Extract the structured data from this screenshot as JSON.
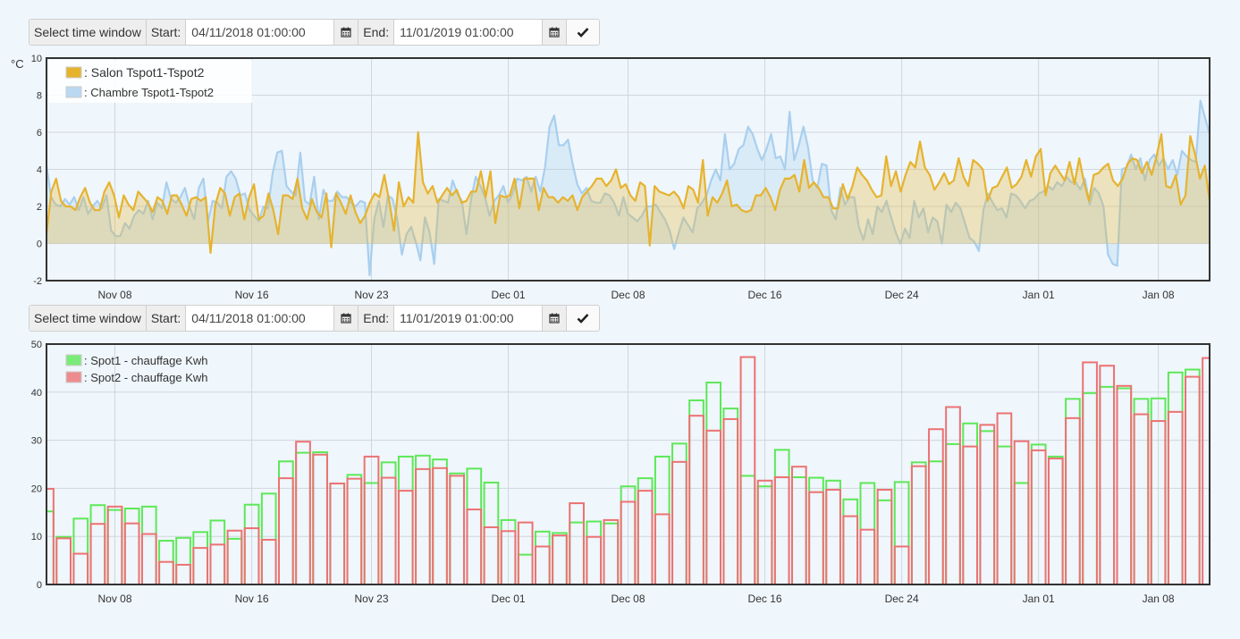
{
  "toolbars": [
    {
      "select_label": "Select time window",
      "start_label": "Start:",
      "start_value": "04/11/2018 01:00:00",
      "end_label": "End:",
      "end_value": "11/01/2019 01:00:00"
    },
    {
      "select_label": "Select time window",
      "start_label": "Start:",
      "start_value": "04/11/2018 01:00:00",
      "end_label": "End:",
      "end_value": "11/01/2019 01:00:00"
    }
  ],
  "chart_data": [
    {
      "type": "area",
      "ylabel": "°C",
      "ylim": [
        -2,
        10
      ],
      "yticks": [
        "10",
        "8",
        "6",
        "4",
        "2",
        "0",
        "-2"
      ],
      "xlim": [
        "2018-11-04",
        "2019-01-11"
      ],
      "xticks": [
        "Nov 08",
        "Nov 16",
        "Nov 23",
        "Dec 01",
        "Dec 08",
        "Dec 16",
        "Dec 24",
        "Jan 01",
        "Jan 08"
      ],
      "grid": true,
      "legend_position": "top-left",
      "colors": {
        "salon": "#e6b32e",
        "chambre": "#a9cfee"
      },
      "series": [
        {
          "name": ": Salon Tspot1-Tspot2",
          "values": [
            0.5,
            2.8,
            3.5,
            2.3,
            2,
            2,
            1.8,
            2.5,
            3,
            2.2,
            1.8,
            1.8,
            2.8,
            3.3,
            2.6,
            1.4,
            2.6,
            2.1,
            1.8,
            2.8,
            2.5,
            2.2,
            1.7,
            2.5,
            2.3,
            1.6,
            2.6,
            2.6,
            2.1,
            1.5,
            2.4,
            2.5,
            2.3,
            2.5,
            -0.5,
            2.1,
            3,
            2.7,
            1.5,
            2.5,
            2.7,
            1.3,
            2.5,
            3.2,
            1.3,
            1.5,
            2.7,
            1.8,
            0.5,
            2.6,
            2.6,
            2.4,
            3.5,
            1.9,
            1.3,
            2.4,
            1.7,
            1.4,
            2.7,
            -0.2,
            2.7,
            2.2,
            1.6,
            2.6,
            1.7,
            1.1,
            1.5,
            2.2,
            2.7,
            2.5,
            3.7,
            2.3,
            0.7,
            3.3,
            2,
            2.5,
            2.2,
            6,
            3.3,
            2.7,
            3.1,
            2.2,
            2.6,
            3,
            2.6,
            2.9,
            2.2,
            2.3,
            2.8,
            2.8,
            3.9,
            2.5,
            3.9,
            1.1,
            2.6,
            2.5,
            2.6,
            3.5,
            1.9,
            3.5,
            3.5,
            3.5,
            1.8,
            3,
            2.5,
            2.5,
            2.2,
            2.5,
            2.3,
            2.6,
            1.8,
            2.5,
            2.8,
            3.1,
            3.5,
            3.5,
            3.1,
            3.4,
            4,
            3,
            3.2,
            2.6,
            2.3,
            3.3,
            3.1,
            -0.1,
            3.1,
            2.8,
            2.7,
            2.6,
            2.8,
            2.5,
            1.9,
            3.1,
            2.9,
            2.2,
            4.5,
            1.5,
            2.5,
            2.2,
            2.7,
            3.4,
            2,
            2.1,
            1.8,
            1.7,
            1.8,
            2.6,
            2.6,
            3,
            2.5,
            1.8,
            2.9,
            3.5,
            3.5,
            3.7,
            2.8,
            4.5,
            3,
            3.3,
            3,
            2.5,
            2.5,
            1.9,
            1.9,
            3.2,
            2.4,
            3.1,
            4.1,
            3.7,
            3.4,
            2.9,
            2.5,
            2.6,
            4.7,
            3.1,
            3.9,
            2.8,
            3.7,
            4.4,
            4.1,
            5.5,
            4.1,
            3.7,
            2.9,
            3.3,
            3.8,
            3.2,
            3.4,
            4.6,
            3.6,
            3.1,
            4.5,
            4.3,
            4,
            2.3,
            3,
            3.1,
            3.6,
            4.1,
            3,
            3.2,
            3.6,
            4.5,
            3.6,
            4.7,
            5.1,
            2.6,
            3.8,
            4.2,
            3.8,
            3.4,
            4.4,
            3.2,
            4.6,
            3.3,
            2.3,
            3.7,
            3.8,
            4.1,
            4.3,
            3.4,
            3.1,
            3.5,
            4.3,
            4.6,
            4.5,
            3.8,
            4.4,
            3.7,
            4.7,
            5.9,
            3.1,
            3,
            3.7,
            2.1,
            2.6,
            5.8,
            4.8,
            3.5,
            4.2,
            2.3
          ]
        },
        {
          "name": ": Chambre Tspot1-Tspot2",
          "values": [
            4.2,
            2.5,
            2.1,
            2,
            2.4,
            2.1,
            2.5,
            1.8,
            2.5,
            1.6,
            2,
            2.3,
            1.9,
            2.6,
            0.7,
            0.4,
            0.4,
            1.1,
            0.8,
            1.5,
            1.8,
            1.6,
            2.3,
            1.3,
            2.2,
            1.9,
            3.3,
            2.4,
            2.2,
            2.5,
            3,
            2,
            1.3,
            3,
            3.5,
            1.2,
            2.3,
            2.2,
            1.9,
            3.6,
            3.9,
            3.5,
            2.6,
            2.7,
            1.8,
            1.5,
            1.2,
            2,
            1.9,
            3.8,
            4.9,
            5,
            3.1,
            2.8,
            2.6,
            4.9,
            2.3,
            2.1,
            3.6,
            1.3,
            2.9,
            2.3,
            2.3,
            2.8,
            2.5,
            2.5,
            2.2,
            2,
            2.3,
            2.2,
            -1.7,
            1.3,
            2.3,
            0.9,
            2.6,
            2.4,
            1.3,
            -0.6,
            0.5,
            0.9,
            0.1,
            -0.9,
            1.4,
            0.6,
            -1.1,
            2.4,
            2.3,
            2.2,
            3.4,
            2.7,
            2.3,
            0.5,
            2.4,
            3.6,
            3.1,
            2.5,
            1.5,
            2.3,
            2.6,
            3.1,
            2.2,
            2.7,
            3.5,
            3.4,
            3.6,
            2.8,
            3.6,
            2.8,
            4.1,
            6.3,
            6.9,
            5.3,
            5.3,
            5.6,
            4.3,
            3.2,
            2.7,
            3,
            2.3,
            2.2,
            2.2,
            2.7,
            2.6,
            2.2,
            1.5,
            2.5,
            1.6,
            1.4,
            1.2,
            1.5,
            2,
            2,
            2.1,
            1.7,
            1.3,
            0.7,
            -0.3,
            0.6,
            1.4,
            1,
            0.6,
            1.9,
            2.2,
            2.6,
            3.4,
            4,
            3.4,
            5.9,
            4,
            4.3,
            5.1,
            5.3,
            6.3,
            5.9,
            5.1,
            4.5,
            5.1,
            5.9,
            4.6,
            4.7,
            4,
            7.1,
            4.5,
            5.3,
            6.3,
            5.2,
            3.4,
            3,
            4.3,
            4.2,
            1.8,
            1.3,
            3,
            2.1,
            2.5,
            2.5,
            0.9,
            0.2,
            1.3,
            0.5,
            2,
            1.7,
            2.3,
            1.4,
            0.6,
            0,
            0.8,
            0.3,
            2.3,
            1.4,
            1.9,
            0.6,
            1.4,
            1.2,
            0,
            2.1,
            1.7,
            2.2,
            1.9,
            1.1,
            0.3,
            0.1,
            -0.4,
            1.8,
            2.7,
            2.2,
            1.8,
            1.9,
            1.4,
            2.7,
            2.6,
            2.3,
            1.9,
            2.3,
            2.4,
            2.7,
            2.8,
            3.1,
            2.9,
            3.3,
            3.1,
            3.6,
            3.3,
            3.3,
            2.9,
            3.5,
            2.1,
            3,
            2.7,
            2,
            -0.6,
            -1.1,
            -1.2,
            4,
            4.1,
            4.8,
            4,
            4.6,
            3.4,
            4.5,
            4.8,
            4.2,
            4.6,
            4,
            4.5,
            3.7,
            5,
            4.7,
            4.5,
            4.4,
            7.7,
            6.8,
            5.9
          ]
        }
      ]
    },
    {
      "type": "bar",
      "ylim": [
        0,
        50
      ],
      "yticks": [
        "50",
        "40",
        "30",
        "20",
        "10",
        "0"
      ],
      "xlim": [
        "2018-11-04",
        "2019-01-11"
      ],
      "xticks": [
        "Nov 08",
        "Nov 16",
        "Nov 23",
        "Dec 01",
        "Dec 08",
        "Dec 16",
        "Dec 24",
        "Jan 01",
        "Jan 08"
      ],
      "grid": true,
      "legend_position": "top-left",
      "colors": {
        "spot1": "#5de857",
        "spot2": "#ec7272"
      },
      "categories": [
        "2018-11-04",
        "2018-11-05",
        "2018-11-06",
        "2018-11-07",
        "2018-11-08",
        "2018-11-09",
        "2018-11-10",
        "2018-11-11",
        "2018-11-12",
        "2018-11-13",
        "2018-11-14",
        "2018-11-15",
        "2018-11-16",
        "2018-11-17",
        "2018-11-18",
        "2018-11-19",
        "2018-11-20",
        "2018-11-21",
        "2018-11-22",
        "2018-11-23",
        "2018-11-24",
        "2018-11-25",
        "2018-11-26",
        "2018-11-27",
        "2018-11-28",
        "2018-11-29",
        "2018-11-30",
        "2018-12-01",
        "2018-12-02",
        "2018-12-03",
        "2018-12-04",
        "2018-12-05",
        "2018-12-06",
        "2018-12-07",
        "2018-12-08",
        "2018-12-09",
        "2018-12-10",
        "2018-12-11",
        "2018-12-12",
        "2018-12-13",
        "2018-12-14",
        "2018-12-15",
        "2018-12-16",
        "2018-12-17",
        "2018-12-18",
        "2018-12-19",
        "2018-12-20",
        "2018-12-21",
        "2018-12-22",
        "2018-12-23",
        "2018-12-24",
        "2018-12-25",
        "2018-12-26",
        "2018-12-27",
        "2018-12-28",
        "2018-12-29",
        "2018-12-30",
        "2018-12-31",
        "2019-01-01",
        "2019-01-02",
        "2019-01-03",
        "2019-01-04",
        "2019-01-05",
        "2019-01-06",
        "2019-01-07",
        "2019-01-08",
        "2019-01-09",
        "2019-01-10",
        "2019-01-11"
      ],
      "series": [
        {
          "name": ": Spot1 - chauffage Kwh",
          "values": [
            15.2,
            9.9,
            13.7,
            16.5,
            15.5,
            15.8,
            16.2,
            9.1,
            9.7,
            10.9,
            13.3,
            9.5,
            16.6,
            18.9,
            25.6,
            27.4,
            27.5,
            21,
            22.8,
            21.1,
            25.4,
            26.6,
            26.8,
            26,
            23.1,
            24.1,
            21.2,
            13.4,
            6.2,
            11,
            10.7,
            12.9,
            13.1,
            12.7,
            20.4,
            22.1,
            26.6,
            29.3,
            38.3,
            42,
            36.6,
            22.6,
            20.4,
            28,
            22.3,
            22.2,
            21.6,
            17.7,
            21.1,
            17.5,
            21.3,
            25.4,
            25.6,
            29.2,
            33.5,
            31.9,
            28.7,
            21.1,
            29.1,
            26.6,
            38.6,
            39.8,
            41.1,
            40.8,
            38.6,
            38.7,
            44.1,
            44.7,
            0
          ]
        },
        {
          "name": ": Spot2 - chauffage Kwh",
          "values": [
            19.9,
            9.6,
            6.4,
            12.6,
            16.2,
            12.7,
            10.5,
            4.7,
            4.1,
            7.6,
            8.3,
            11.2,
            11.7,
            9.3,
            22.1,
            29.7,
            27,
            21,
            22,
            26.6,
            22.2,
            19.5,
            24,
            24.2,
            22.6,
            15.6,
            11.9,
            11.1,
            12.9,
            7.9,
            10.2,
            16.9,
            9.9,
            13.4,
            17.2,
            19.5,
            14.6,
            25.5,
            35.1,
            32,
            34.4,
            47.3,
            21.6,
            22.3,
            24.5,
            19.2,
            19.7,
            14.2,
            11.4,
            19.7,
            7.9,
            24.6,
            32.3,
            36.9,
            28.7,
            33.2,
            35.6,
            29.8,
            27.9,
            26.2,
            34.6,
            46.2,
            45.5,
            41.3,
            35.4,
            34,
            35.9,
            43.2,
            47.1
          ]
        }
      ]
    }
  ]
}
